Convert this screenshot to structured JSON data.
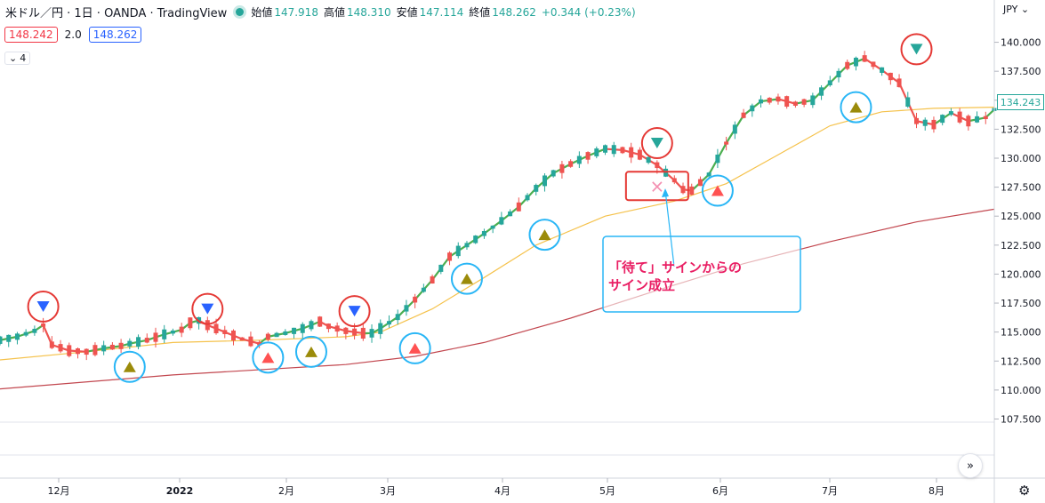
{
  "header": {
    "symbol": "米ドル／円 · 1日 · OANDA · TradingView",
    "open_label": "始値",
    "open": "147.918",
    "high_label": "高値",
    "high": "148.310",
    "low_label": "安値",
    "low": "147.114",
    "close_label": "終値",
    "close": "148.262",
    "change": "+0.344 (+0.23%)"
  },
  "badges": {
    "sell": "148.242",
    "spread": "2.0",
    "buy": "148.262"
  },
  "indicator_toggle": "4",
  "price_axis": {
    "currency": "JPY",
    "last_price": "134.243"
  },
  "chart_data": {
    "type": "line",
    "title": "",
    "x": [
      "12月",
      "2022",
      "2月",
      "3月",
      "4月",
      "5月",
      "6月",
      "7月",
      "8月"
    ],
    "y_ticks": [
      "140.000",
      "137.500",
      "135.000",
      "132.500",
      "130.000",
      "127.500",
      "125.000",
      "122.500",
      "120.000",
      "117.500",
      "115.000",
      "112.500",
      "110.000",
      "107.500"
    ],
    "ylim": [
      107.0,
      141.5
    ],
    "series": [
      {
        "color": "#4caf50",
        "values": [
          [
            0,
            114.3
          ],
          [
            2,
            114.6
          ],
          [
            4,
            115.1
          ],
          [
            5,
            115.6
          ],
          [
            6,
            113.9
          ],
          [
            8,
            113.4
          ],
          [
            10,
            113.3
          ],
          [
            12,
            113.6
          ],
          [
            14,
            113.8
          ],
          [
            15,
            114.0
          ],
          [
            17,
            114.3
          ],
          [
            19,
            114.8
          ],
          [
            21,
            115.2
          ],
          [
            22,
            115.8
          ],
          [
            23,
            116.0
          ],
          [
            24,
            115.6
          ],
          [
            26,
            115.0
          ],
          [
            28,
            114.4
          ],
          [
            30,
            114.0
          ],
          [
            31,
            114.6
          ],
          [
            33,
            114.9
          ],
          [
            35,
            115.3
          ],
          [
            37,
            115.9
          ],
          [
            38,
            115.5
          ],
          [
            40,
            115.1
          ],
          [
            42,
            114.9
          ],
          [
            43,
            114.9
          ],
          [
            44,
            115.3
          ],
          [
            46,
            116.3
          ],
          [
            48,
            117.8
          ],
          [
            50,
            119.5
          ],
          [
            52,
            121.5
          ],
          [
            54,
            122.5
          ],
          [
            56,
            123.5
          ],
          [
            58,
            124.6
          ],
          [
            60,
            125.8
          ],
          [
            62,
            127.4
          ],
          [
            64,
            128.7
          ],
          [
            66,
            129.5
          ],
          [
            68,
            130.2
          ],
          [
            70,
            130.8
          ],
          [
            72,
            130.7
          ],
          [
            74,
            130.3
          ],
          [
            76,
            129.4
          ],
          [
            78,
            128.1
          ],
          [
            79,
            127.3
          ],
          [
            80,
            127.2
          ],
          [
            82,
            128.6
          ],
          [
            84,
            131.3
          ],
          [
            86,
            133.7
          ],
          [
            88,
            134.9
          ],
          [
            90,
            135.1
          ],
          [
            92,
            134.7
          ],
          [
            94,
            135.0
          ],
          [
            96,
            136.5
          ],
          [
            98,
            138.0
          ],
          [
            100,
            138.6
          ],
          [
            102,
            137.6
          ],
          [
            104,
            136.5
          ],
          [
            106,
            133.2
          ],
          [
            108,
            132.9
          ],
          [
            110,
            133.9
          ],
          [
            112,
            133.2
          ],
          [
            114,
            133.5
          ],
          [
            115,
            134.2
          ]
        ]
      },
      {
        "color": "#f5c24c",
        "values": [
          [
            0,
            112.6
          ],
          [
            10,
            113.3
          ],
          [
            20,
            114.1
          ],
          [
            30,
            114.3
          ],
          [
            40,
            114.6
          ],
          [
            44,
            115.0
          ],
          [
            50,
            117.0
          ],
          [
            56,
            119.7
          ],
          [
            62,
            122.5
          ],
          [
            70,
            125.0
          ],
          [
            78,
            126.3
          ],
          [
            84,
            127.8
          ],
          [
            90,
            130.3
          ],
          [
            96,
            132.8
          ],
          [
            102,
            134.0
          ],
          [
            108,
            134.3
          ],
          [
            115,
            134.4
          ]
        ]
      },
      {
        "color": "#c2474f",
        "values": [
          [
            0,
            110.1
          ],
          [
            20,
            111.3
          ],
          [
            40,
            112.2
          ],
          [
            48,
            112.9
          ],
          [
            56,
            114.1
          ],
          [
            66,
            116.2
          ],
          [
            76,
            118.6
          ],
          [
            86,
            120.9
          ],
          [
            96,
            122.8
          ],
          [
            106,
            124.5
          ],
          [
            115,
            125.6
          ]
        ]
      }
    ],
    "signals": [
      {
        "type": "sell",
        "color": "#2962ff",
        "ring": "#e53935",
        "x": 5,
        "y": 117.2
      },
      {
        "type": "sell",
        "color": "#2962ff",
        "ring": "#e53935",
        "x": 24,
        "y": 117.0
      },
      {
        "type": "sell",
        "color": "#2962ff",
        "ring": "#e53935",
        "x": 41,
        "y": 116.8
      },
      {
        "type": "sell",
        "color": "#26a69a",
        "ring": "#e53935",
        "x": 76,
        "y": 131.3
      },
      {
        "type": "sell",
        "color": "#26a69a",
        "ring": "#e53935",
        "x": 106,
        "y": 139.4
      },
      {
        "type": "buy",
        "color": "#ff5252",
        "ring": "#29b6f6",
        "x": 31,
        "y": 112.8
      },
      {
        "type": "buy",
        "color": "#ff5252",
        "ring": "#29b6f6",
        "x": 48,
        "y": 113.6
      },
      {
        "type": "buy",
        "color": "#ff5252",
        "ring": "#29b6f6",
        "x": 83,
        "y": 127.2
      },
      {
        "type": "buy",
        "color": "#9b8b0a",
        "ring": "#29b6f6",
        "x": 15,
        "y": 112.0
      },
      {
        "type": "buy",
        "color": "#9b8b0a",
        "ring": "#29b6f6",
        "x": 36,
        "y": 113.3
      },
      {
        "type": "buy",
        "color": "#9b8b0a",
        "ring": "#29b6f6",
        "x": 54,
        "y": 119.6
      },
      {
        "type": "buy",
        "color": "#9b8b0a",
        "ring": "#29b6f6",
        "x": 63,
        "y": 123.4
      },
      {
        "type": "buy",
        "color": "#9b8b0a",
        "ring": "#29b6f6",
        "x": 99,
        "y": 134.4
      }
    ],
    "waiting_signal": {
      "symbol": "×",
      "color": "#f48fb1",
      "box": "#e53935",
      "x": 76,
      "y": 127.6
    },
    "annotation": {
      "lines": [
        "「待て」サインからの",
        "サイン成立"
      ],
      "text_color": "#e91e63",
      "box": "#29b6f6"
    }
  }
}
